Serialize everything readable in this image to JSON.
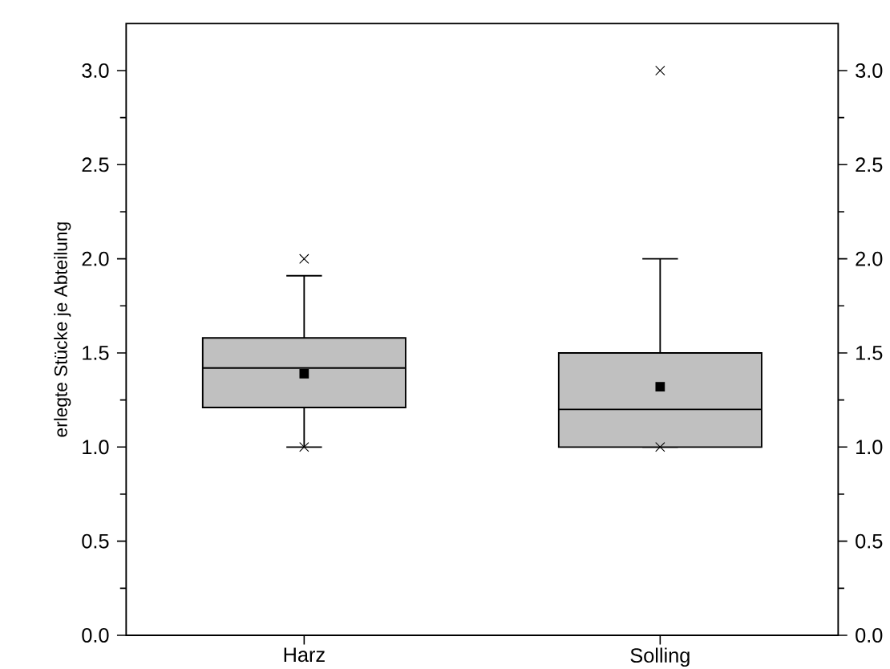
{
  "chart_data": {
    "type": "box",
    "ylabel": "erlegte Stücke je Abteilung",
    "categories": [
      "Harz",
      "Solling"
    ],
    "series": [
      {
        "color": "#c0c0c0",
        "boxes": [
          {
            "low": 1.0,
            "q1": 1.21,
            "median": 1.42,
            "q3": 1.58,
            "high": 1.91,
            "mean": 1.39,
            "outliers": [
              2.0,
              1.0
            ]
          },
          {
            "low": 1.0,
            "q1": 1.0,
            "median": 1.2,
            "q3": 1.5,
            "high": 2.0,
            "mean": 1.32,
            "outliers": [
              3.0,
              1.0
            ]
          }
        ]
      }
    ],
    "ylim": [
      0,
      3.25
    ],
    "yticks": [
      {
        "value": 0,
        "label": "0.0"
      },
      {
        "value": 0.5,
        "label": "0.5"
      },
      {
        "value": 1,
        "label": "1.0"
      },
      {
        "value": 1.5,
        "label": "1.5"
      },
      {
        "value": 2,
        "label": "2.0"
      },
      {
        "value": 2.5,
        "label": "2.5"
      },
      {
        "value": 3,
        "label": "3.0"
      }
    ],
    "y2lim": [
      0,
      3.25
    ],
    "y2ticks": [
      {
        "value": 0,
        "label": "0.0"
      },
      {
        "value": 0.5,
        "label": "0.5"
      },
      {
        "value": 1,
        "label": "1.0"
      },
      {
        "value": 1.5,
        "label": "1.5"
      },
      {
        "value": 2,
        "label": "2.0"
      },
      {
        "value": 2.5,
        "label": "2.5"
      },
      {
        "value": 3,
        "label": "3.0"
      }
    ],
    "grid": false
  }
}
